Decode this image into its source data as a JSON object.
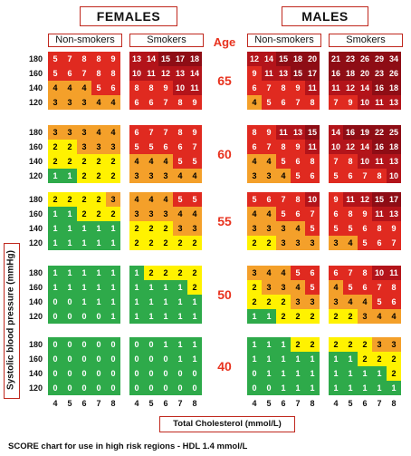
{
  "headers": {
    "females": "FEMALES",
    "males": "MALES",
    "non_smokers": "Non-smokers",
    "smokers": "Smokers",
    "age": "Age"
  },
  "axis": {
    "ylabel": "Systolic blood pressure (mmHg)",
    "xlabel": "Total Cholesterol (mmol/L)",
    "x_ticks": [
      "4",
      "5",
      "6",
      "7",
      "8"
    ],
    "y_ticks": [
      "180",
      "160",
      "140",
      "120"
    ]
  },
  "footer": "SCORE chart for use in high risk regions - HDL 1.4 mmol/L",
  "colors": {
    "green": "#2eaa4a",
    "yellow": "#fff200",
    "orange": "#f4a02a",
    "red": "#e02a20",
    "darkred": "#b3141a",
    "deepred": "#8e0d15"
  },
  "chart_data": {
    "type": "heatmap",
    "title": "SCORE chart for use in high risk regions - HDL 1.4 mmol/L",
    "xlabel": "Total Cholesterol (mmol/L)",
    "ylabel": "Systolic blood pressure (mmHg)",
    "x": [
      4,
      5,
      6,
      7,
      8
    ],
    "y": [
      180,
      160,
      140,
      120
    ],
    "panels": [
      {
        "age": "65",
        "female_nonsmoker": [
          [
            5,
            7,
            8,
            8,
            9
          ],
          [
            5,
            6,
            7,
            8,
            8
          ],
          [
            4,
            4,
            4,
            5,
            6
          ],
          [
            3,
            3,
            3,
            4,
            4
          ]
        ],
        "female_smoker": [
          [
            13,
            14,
            15,
            17,
            18
          ],
          [
            10,
            11,
            12,
            13,
            14
          ],
          [
            8,
            8,
            9,
            10,
            11
          ],
          [
            6,
            6,
            7,
            8,
            9
          ]
        ],
        "male_nonsmoker": [
          [
            12,
            14,
            15,
            18,
            20
          ],
          [
            9,
            11,
            13,
            15,
            17
          ],
          [
            6,
            7,
            8,
            9,
            11
          ],
          [
            4,
            5,
            6,
            7,
            8
          ]
        ],
        "male_smoker": [
          [
            21,
            23,
            26,
            29,
            34
          ],
          [
            16,
            18,
            20,
            23,
            26
          ],
          [
            11,
            12,
            14,
            16,
            18
          ],
          [
            7,
            9,
            10,
            11,
            13
          ]
        ]
      },
      {
        "age": "60",
        "female_nonsmoker": [
          [
            3,
            3,
            3,
            4,
            4
          ],
          [
            2,
            2,
            3,
            3,
            3
          ],
          [
            2,
            2,
            2,
            2,
            2
          ],
          [
            1,
            1,
            2,
            2,
            2
          ]
        ],
        "female_smoker": [
          [
            6,
            7,
            7,
            8,
            9
          ],
          [
            5,
            5,
            6,
            6,
            7
          ],
          [
            4,
            4,
            4,
            5,
            5
          ],
          [
            3,
            3,
            3,
            4,
            4
          ]
        ],
        "male_nonsmoker": [
          [
            8,
            9,
            11,
            13,
            15
          ],
          [
            6,
            7,
            8,
            9,
            11
          ],
          [
            4,
            4,
            5,
            6,
            8
          ],
          [
            3,
            3,
            4,
            5,
            6
          ]
        ],
        "male_smoker": [
          [
            14,
            16,
            19,
            22,
            25
          ],
          [
            10,
            12,
            14,
            16,
            18
          ],
          [
            7,
            8,
            10,
            11,
            13
          ],
          [
            5,
            6,
            7,
            8,
            10
          ]
        ]
      },
      {
        "age": "55",
        "female_nonsmoker": [
          [
            2,
            2,
            2,
            2,
            3
          ],
          [
            1,
            1,
            2,
            2,
            2
          ],
          [
            1,
            1,
            1,
            1,
            1
          ],
          [
            1,
            1,
            1,
            1,
            1
          ]
        ],
        "female_smoker": [
          [
            4,
            4,
            4,
            5,
            5
          ],
          [
            3,
            3,
            3,
            4,
            4
          ],
          [
            2,
            2,
            2,
            3,
            3
          ],
          [
            2,
            2,
            2,
            2,
            2
          ]
        ],
        "male_nonsmoker": [
          [
            5,
            6,
            7,
            8,
            10
          ],
          [
            4,
            4,
            5,
            6,
            7
          ],
          [
            3,
            3,
            3,
            4,
            5
          ],
          [
            2,
            2,
            3,
            3,
            3
          ]
        ],
        "male_smoker": [
          [
            9,
            11,
            12,
            15,
            17
          ],
          [
            6,
            8,
            9,
            11,
            13
          ],
          [
            5,
            5,
            6,
            8,
            9
          ],
          [
            3,
            4,
            5,
            6,
            7
          ]
        ]
      },
      {
        "age": "50",
        "female_nonsmoker": [
          [
            1,
            1,
            1,
            1,
            1
          ],
          [
            1,
            1,
            1,
            1,
            1
          ],
          [
            0,
            0,
            1,
            1,
            1
          ],
          [
            0,
            0,
            0,
            0,
            1
          ]
        ],
        "female_smoker": [
          [
            1,
            2,
            2,
            2,
            2
          ],
          [
            1,
            1,
            1,
            1,
            2
          ],
          [
            1,
            1,
            1,
            1,
            1
          ],
          [
            1,
            1,
            1,
            1,
            1
          ]
        ],
        "male_nonsmoker": [
          [
            3,
            4,
            4,
            5,
            6
          ],
          [
            2,
            3,
            3,
            4,
            5
          ],
          [
            2,
            2,
            2,
            3,
            3
          ],
          [
            1,
            1,
            2,
            2,
            2
          ]
        ],
        "male_smoker": [
          [
            6,
            7,
            8,
            10,
            11
          ],
          [
            4,
            5,
            6,
            7,
            8
          ],
          [
            3,
            4,
            4,
            5,
            6
          ],
          [
            2,
            2,
            3,
            4,
            4
          ]
        ]
      },
      {
        "age": "40",
        "female_nonsmoker": [
          [
            0,
            0,
            0,
            0,
            0
          ],
          [
            0,
            0,
            0,
            0,
            0
          ],
          [
            0,
            0,
            0,
            0,
            0
          ],
          [
            0,
            0,
            0,
            0,
            0
          ]
        ],
        "female_smoker": [
          [
            0,
            0,
            1,
            1,
            1
          ],
          [
            0,
            0,
            0,
            1,
            1
          ],
          [
            0,
            0,
            0,
            0,
            0
          ],
          [
            0,
            0,
            0,
            0,
            0
          ]
        ],
        "male_nonsmoker": [
          [
            1,
            1,
            1,
            2,
            2
          ],
          [
            1,
            1,
            1,
            1,
            1
          ],
          [
            0,
            1,
            1,
            1,
            1
          ],
          [
            0,
            0,
            1,
            1,
            1
          ]
        ],
        "male_smoker": [
          [
            2,
            2,
            2,
            3,
            3
          ],
          [
            1,
            1,
            2,
            2,
            2
          ],
          [
            1,
            1,
            1,
            1,
            2
          ],
          [
            1,
            1,
            1,
            1,
            1
          ]
        ]
      }
    ]
  }
}
